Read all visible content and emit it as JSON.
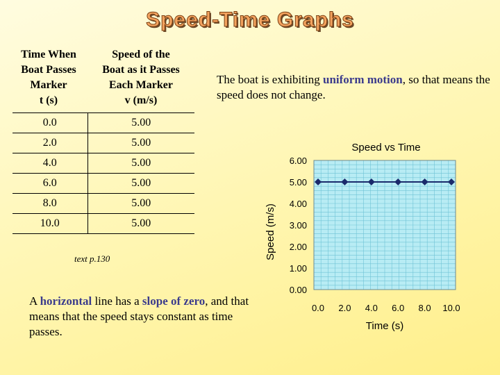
{
  "title": "Speed-Time Graphs",
  "table": {
    "col1_header": [
      "Time When",
      "Boat Passes",
      "Marker"
    ],
    "col1_unit": "t (s)",
    "col2_header": [
      "Speed of the",
      "Boat as it Passes",
      "Each Marker"
    ],
    "col2_unit": "v (m/s)",
    "rows": [
      [
        "0.0",
        "5.00"
      ],
      [
        "2.0",
        "5.00"
      ],
      [
        "4.0",
        "5.00"
      ],
      [
        "6.0",
        "5.00"
      ],
      [
        "8.0",
        "5.00"
      ],
      [
        "10.0",
        "5.00"
      ]
    ]
  },
  "reference": "text p.130",
  "note_top": {
    "pre": "The boat is exhibiting ",
    "term": "uniform motion",
    "post": ", so that means the speed does not change."
  },
  "note_bottom": {
    "p1": "A ",
    "t1": "horizontal",
    "p2": " line has a ",
    "t2": "slope of zero",
    "p3": ", and that means that the speed stays constant as time passes."
  },
  "chart_data": {
    "type": "line",
    "title": "Speed vs Time",
    "xlabel": "Time (s)",
    "ylabel": "Speed (m/s)",
    "x": [
      0.0,
      2.0,
      4.0,
      6.0,
      8.0,
      10.0
    ],
    "x_ticks": [
      "0.0",
      "2.0",
      "4.0",
      "6.0",
      "8.0",
      "10.0"
    ],
    "y_ticks": [
      "0.00",
      "1.00",
      "2.00",
      "3.00",
      "4.00",
      "5.00",
      "6.00"
    ],
    "ylim": [
      0,
      6
    ],
    "xlim": [
      0,
      10
    ],
    "series": [
      {
        "values": [
          5.0,
          5.0,
          5.0,
          5.0,
          5.0,
          5.0
        ]
      }
    ],
    "grid": true,
    "plot_background": "#b8ecf4",
    "grid_color": "#6fc3d6",
    "line_color": "#1a2a6b"
  }
}
